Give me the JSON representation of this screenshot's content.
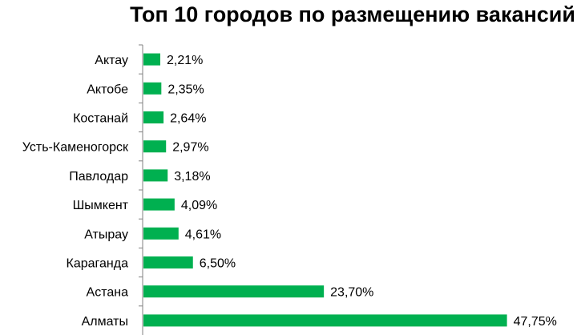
{
  "chart_data": {
    "type": "bar",
    "orientation": "horizontal",
    "title": "Топ 10 городов по размещению вакансий",
    "categories": [
      "Актау",
      "Актобе",
      "Костанай",
      "Усть-Каменогорск",
      "Павлодар",
      "Шымкент",
      "Атырау",
      "Караганда",
      "Астана",
      "Алматы"
    ],
    "values": [
      2.21,
      2.35,
      2.64,
      2.97,
      3.18,
      4.09,
      4.61,
      6.5,
      23.7,
      47.75
    ],
    "value_labels": [
      "2,21%",
      "2,35%",
      "2,64%",
      "2,97%",
      "3,18%",
      "4,09%",
      "4,61%",
      "6,50%",
      "23,70%",
      "47,75%"
    ],
    "xlabel": "",
    "ylabel": "",
    "xlim": [
      0,
      50
    ],
    "grid": false,
    "legend": "none",
    "bar_color": "#00b050",
    "axis_color": "#808080"
  }
}
